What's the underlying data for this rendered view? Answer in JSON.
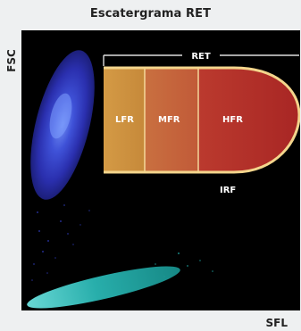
{
  "title": "Escatergrama RET",
  "y_axis_label": "FSC",
  "x_axis_label": "SFL",
  "regions": {
    "ret": "RET",
    "lfr": "LFR",
    "mfr": "MFR",
    "hfr": "HFR",
    "irf": "IRF"
  },
  "colors": {
    "background": "#000000",
    "lfr": "#c98a3c",
    "mfr": "#c5633c",
    "hfr": "#b8322c",
    "outline": "#f3d58c",
    "rbc_cluster": "#2f3bc4",
    "plt_cluster": "#19b4b0"
  }
}
